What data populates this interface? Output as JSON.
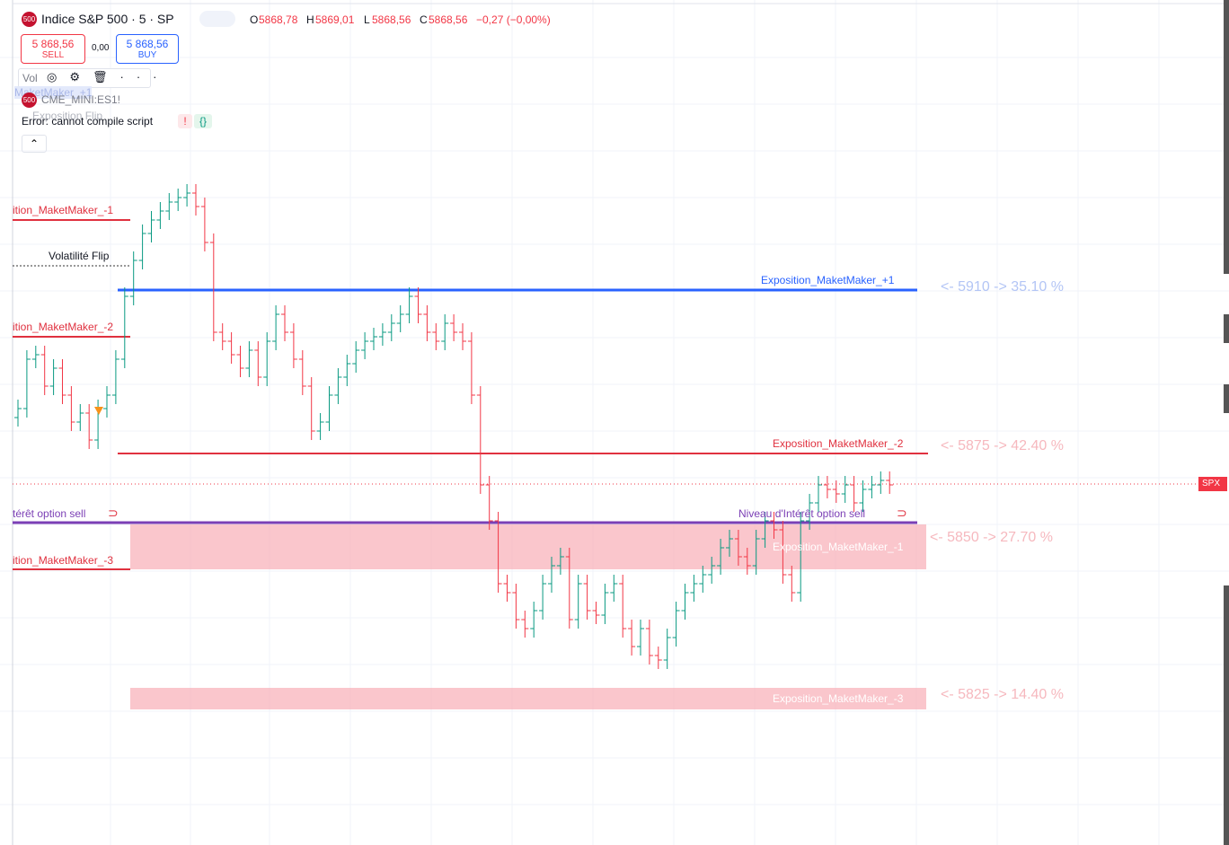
{
  "header": {
    "logo": "500",
    "symbol": "Indice S&P 500 · 5 · SP",
    "o_label": "O",
    "open": "5868,78",
    "h_label": "H",
    "high": "5869,01",
    "l_label": "L",
    "low": "5868,56",
    "c_label": "C",
    "close": "5868,56",
    "change": "−0,27 (−0,00%)"
  },
  "trade": {
    "sell_price": "5 868,56",
    "sell": "SELL",
    "spread": "0,00",
    "buy_price": "5 868,56",
    "buy": "BUY"
  },
  "indicators": {
    "vol": "Vol",
    "ghost_label": "MaketMaker_+1",
    "logo": "500",
    "symbol": "CME_MINI:ES1!",
    "ghost_flip": "Exposition Flip",
    "error": "Error: cannot compile script",
    "error_icon": "!",
    "code_icon": "{}"
  },
  "left_labels": [
    "ition_MaketMaker_-1",
    "Volatilité Flip",
    "ition_MaketMaker_-2",
    "térêt option sell",
    "ition_MaketMaker_-3"
  ],
  "right_labels": {
    "plus1": "Exposition_MaketMaker_+1",
    "plus1_note": "<- 5910 -> 35.10 %",
    "minus2": "Exposition_MaketMaker_-2",
    "minus2_note": "<- 5875 -> 42.40 %",
    "interest": "Niveau d'Intérêt option sell",
    "minus1": "Exposition_MaketMaker_-1",
    "minus1_note": "<- 5850 -> 27.70 %",
    "minus3": "Exposition_MaketMaker_-3",
    "minus3_note": "<- 5825 -> 14.40 %"
  },
  "price_tag": "SPX"
}
